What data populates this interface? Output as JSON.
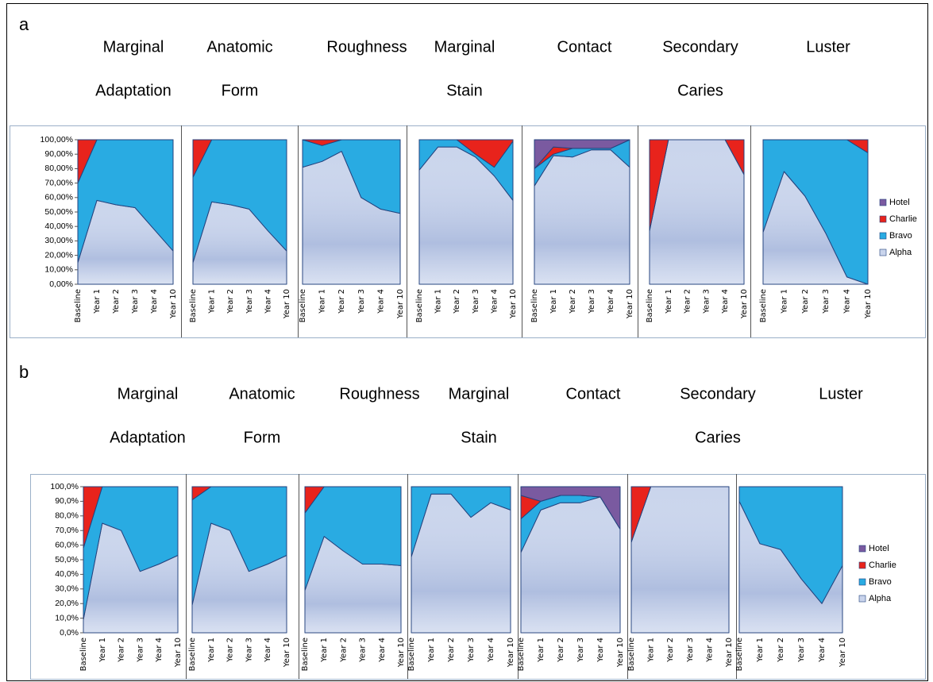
{
  "panel_labels": [
    "a",
    "b"
  ],
  "chart_data": [
    {
      "type": "area",
      "title": [
        "Marginal",
        "Adaptation"
      ],
      "categories": [
        "Baseline",
        "Year 1",
        "Year 2",
        "Year 3",
        "Year 4",
        "Year 10"
      ],
      "ylim": [
        0,
        100
      ],
      "yticks": [
        {
          "value": 0,
          "label": "0,00%"
        },
        {
          "value": 10,
          "label": "10,00%"
        },
        {
          "value": 20,
          "label": "20,00%"
        },
        {
          "value": 30,
          "label": "30,00%"
        },
        {
          "value": 40,
          "label": "40,00%"
        },
        {
          "value": 50,
          "label": "50,00%"
        },
        {
          "value": 60,
          "label": "60,00%"
        },
        {
          "value": 70,
          "label": "70,00%"
        },
        {
          "value": 80,
          "label": "80,00%"
        },
        {
          "value": 90,
          "label": "90,00%"
        },
        {
          "value": 100,
          "label": "100,00%"
        }
      ],
      "series": [
        {
          "name": "Alpha",
          "color": "#c9d4ec",
          "values": [
            15,
            58,
            55,
            53,
            38,
            23
          ]
        },
        {
          "name": "Bravo",
          "color": "#29abe2",
          "values": [
            55,
            42,
            45,
            47,
            62,
            77
          ]
        },
        {
          "name": "Charlie",
          "color": "#e8231c",
          "values": [
            30,
            0,
            0,
            0,
            0,
            0
          ]
        },
        {
          "name": "Hotel",
          "color": "#7a5aa0",
          "values": [
            0,
            0,
            0,
            0,
            0,
            0
          ]
        }
      ]
    },
    {
      "type": "area",
      "title": [
        "Anatomic",
        "Form"
      ],
      "categories": [
        "Baseline",
        "Year 1",
        "Year 2",
        "Year 3",
        "Year 4",
        "Year 10"
      ],
      "ylim": [
        0,
        100
      ],
      "series": [
        {
          "name": "Alpha",
          "color": "#c9d4ec",
          "values": [
            15,
            57,
            55,
            52,
            37,
            23
          ]
        },
        {
          "name": "Bravo",
          "color": "#29abe2",
          "values": [
            59,
            43,
            45,
            48,
            63,
            77
          ]
        },
        {
          "name": "Charlie",
          "color": "#e8231c",
          "values": [
            26,
            0,
            0,
            0,
            0,
            0
          ]
        },
        {
          "name": "Hotel",
          "color": "#7a5aa0",
          "values": [
            0,
            0,
            0,
            0,
            0,
            0
          ]
        }
      ]
    },
    {
      "type": "area",
      "title": [
        "Roughness"
      ],
      "categories": [
        "Baseline",
        "Year 1",
        "Year 2",
        "Year 3",
        "Year 4",
        "Year 10"
      ],
      "ylim": [
        0,
        100
      ],
      "series": [
        {
          "name": "Alpha",
          "color": "#c9d4ec",
          "values": [
            81,
            85,
            92,
            60,
            52,
            49
          ]
        },
        {
          "name": "Bravo",
          "color": "#29abe2",
          "values": [
            19,
            11,
            8,
            40,
            48,
            51
          ]
        },
        {
          "name": "Charlie",
          "color": "#e8231c",
          "values": [
            0,
            4,
            0,
            0,
            0,
            0
          ]
        },
        {
          "name": "Hotel",
          "color": "#7a5aa0",
          "values": [
            0,
            0,
            0,
            0,
            0,
            0
          ]
        }
      ]
    },
    {
      "type": "area",
      "title": [
        "Marginal",
        "Stain"
      ],
      "categories": [
        "Baseline",
        "Year 1",
        "Year 2",
        "Year 3",
        "Year 4",
        "Year 10"
      ],
      "ylim": [
        0,
        100
      ],
      "series": [
        {
          "name": "Alpha",
          "color": "#c9d4ec",
          "values": [
            79,
            95,
            95,
            88,
            75,
            58
          ]
        },
        {
          "name": "Bravo",
          "color": "#29abe2",
          "values": [
            21,
            5,
            5,
            2,
            6,
            41
          ]
        },
        {
          "name": "Charlie",
          "color": "#e8231c",
          "values": [
            0,
            0,
            0,
            10,
            19,
            1
          ]
        },
        {
          "name": "Hotel",
          "color": "#7a5aa0",
          "values": [
            0,
            0,
            0,
            0,
            0,
            0
          ]
        }
      ]
    },
    {
      "type": "area",
      "title": [
        "Contact"
      ],
      "categories": [
        "Baseline",
        "Year 1",
        "Year 2",
        "Year 3",
        "Year 4",
        "Year 10"
      ],
      "ylim": [
        0,
        100
      ],
      "series": [
        {
          "name": "Alpha",
          "color": "#c9d4ec",
          "values": [
            68,
            89,
            88,
            93,
            93,
            81
          ]
        },
        {
          "name": "Bravo",
          "color": "#29abe2",
          "values": [
            12,
            1,
            6,
            1,
            1,
            19
          ]
        },
        {
          "name": "Charlie",
          "color": "#e8231c",
          "values": [
            0,
            5,
            0,
            0,
            0,
            0
          ]
        },
        {
          "name": "Hotel",
          "color": "#7a5aa0",
          "values": [
            20,
            5,
            6,
            6,
            6,
            0
          ]
        }
      ]
    },
    {
      "type": "area",
      "title": [
        "Secondary",
        "Caries"
      ],
      "categories": [
        "Baseline",
        "Year 1",
        "Year 2",
        "Year 3",
        "Year 4",
        "Year 10"
      ],
      "ylim": [
        0,
        100
      ],
      "series": [
        {
          "name": "Alpha",
          "color": "#c9d4ec",
          "values": [
            37,
            100,
            100,
            100,
            100,
            76
          ]
        },
        {
          "name": "Bravo",
          "color": "#29abe2",
          "values": [
            0,
            0,
            0,
            0,
            0,
            0
          ]
        },
        {
          "name": "Charlie",
          "color": "#e8231c",
          "values": [
            63,
            0,
            0,
            0,
            0,
            24
          ]
        },
        {
          "name": "Hotel",
          "color": "#7a5aa0",
          "values": [
            0,
            0,
            0,
            0,
            0,
            0
          ]
        }
      ]
    },
    {
      "type": "area",
      "title": [
        "Luster"
      ],
      "categories": [
        "Baseline",
        "Year 1",
        "Year 2",
        "Year 3",
        "Year 4",
        "Year 10"
      ],
      "ylim": [
        0,
        100
      ],
      "legend": "right",
      "series": [
        {
          "name": "Alpha",
          "color": "#c9d4ec",
          "values": [
            36,
            78,
            61,
            35,
            5,
            0
          ]
        },
        {
          "name": "Bravo",
          "color": "#29abe2",
          "values": [
            64,
            22,
            39,
            65,
            95,
            91
          ]
        },
        {
          "name": "Charlie",
          "color": "#e8231c",
          "values": [
            0,
            0,
            0,
            0,
            0,
            9
          ]
        },
        {
          "name": "Hotel",
          "color": "#7a5aa0",
          "values": [
            0,
            0,
            0,
            0,
            0,
            0
          ]
        }
      ]
    },
    {
      "type": "area",
      "title": [
        "Marginal",
        "Adaptation"
      ],
      "categories": [
        "Baseline",
        "Year 1",
        "Year 2",
        "Year 3",
        "Year 4",
        "Year 10"
      ],
      "ylim": [
        0,
        100
      ],
      "yticks": [
        {
          "value": 0,
          "label": "0,0%"
        },
        {
          "value": 10,
          "label": "10,0%"
        },
        {
          "value": 20,
          "label": "20,0%"
        },
        {
          "value": 30,
          "label": "30,0%"
        },
        {
          "value": 40,
          "label": "40,0%"
        },
        {
          "value": 50,
          "label": "50,0%"
        },
        {
          "value": 60,
          "label": "60,0%"
        },
        {
          "value": 70,
          "label": "70,0%"
        },
        {
          "value": 80,
          "label": "80,0%"
        },
        {
          "value": 90,
          "label": "90,0%"
        },
        {
          "value": 100,
          "label": "100,0%"
        }
      ],
      "series": [
        {
          "name": "Alpha",
          "color": "#c9d4ec",
          "values": [
            9,
            75,
            70,
            42,
            47,
            53
          ]
        },
        {
          "name": "Bravo",
          "color": "#29abe2",
          "values": [
            49,
            25,
            30,
            58,
            53,
            47
          ]
        },
        {
          "name": "Charlie",
          "color": "#e8231c",
          "values": [
            42,
            0,
            0,
            0,
            0,
            0
          ]
        },
        {
          "name": "Hotel",
          "color": "#7a5aa0",
          "values": [
            0,
            0,
            0,
            0,
            0,
            0
          ]
        }
      ]
    },
    {
      "type": "area",
      "title": [
        "Anatomic",
        "Form"
      ],
      "categories": [
        "Baseline",
        "Year 1",
        "Year 2",
        "Year 3",
        "Year 4",
        "Year 10"
      ],
      "ylim": [
        0,
        100
      ],
      "series": [
        {
          "name": "Alpha",
          "color": "#c9d4ec",
          "values": [
            19,
            75,
            70,
            42,
            47,
            53
          ]
        },
        {
          "name": "Bravo",
          "color": "#29abe2",
          "values": [
            72,
            25,
            30,
            58,
            53,
            47
          ]
        },
        {
          "name": "Charlie",
          "color": "#e8231c",
          "values": [
            9,
            0,
            0,
            0,
            0,
            0
          ]
        },
        {
          "name": "Hotel",
          "color": "#7a5aa0",
          "values": [
            0,
            0,
            0,
            0,
            0,
            0
          ]
        }
      ]
    },
    {
      "type": "area",
      "title": [
        "Roughness"
      ],
      "categories": [
        "Baseline",
        "Year 1",
        "Year 2",
        "Year 3",
        "Year 4",
        "Year 10"
      ],
      "ylim": [
        0,
        100
      ],
      "series": [
        {
          "name": "Alpha",
          "color": "#c9d4ec",
          "values": [
            29,
            66,
            56,
            47,
            47,
            46
          ]
        },
        {
          "name": "Bravo",
          "color": "#29abe2",
          "values": [
            53,
            34,
            44,
            53,
            53,
            54
          ]
        },
        {
          "name": "Charlie",
          "color": "#e8231c",
          "values": [
            18,
            0,
            0,
            0,
            0,
            0
          ]
        },
        {
          "name": "Hotel",
          "color": "#7a5aa0",
          "values": [
            0,
            0,
            0,
            0,
            0,
            0
          ]
        }
      ]
    },
    {
      "type": "area",
      "title": [
        "Marginal",
        "Stain"
      ],
      "categories": [
        "Baseline",
        "Year 1",
        "Year 2",
        "Year 3",
        "Year 4",
        "Year 10"
      ],
      "ylim": [
        0,
        100
      ],
      "series": [
        {
          "name": "Alpha",
          "color": "#c9d4ec",
          "values": [
            52,
            95,
            95,
            79,
            89,
            84
          ]
        },
        {
          "name": "Bravo",
          "color": "#29abe2",
          "values": [
            48,
            5,
            5,
            21,
            11,
            16
          ]
        },
        {
          "name": "Charlie",
          "color": "#e8231c",
          "values": [
            0,
            0,
            0,
            0,
            0,
            0
          ]
        },
        {
          "name": "Hotel",
          "color": "#7a5aa0",
          "values": [
            0,
            0,
            0,
            0,
            0,
            0
          ]
        }
      ]
    },
    {
      "type": "area",
      "title": [
        "Contact"
      ],
      "categories": [
        "Baseline",
        "Year 1",
        "Year 2",
        "Year 3",
        "Year 4",
        "Year 10"
      ],
      "ylim": [
        0,
        100
      ],
      "series": [
        {
          "name": "Alpha",
          "color": "#c9d4ec",
          "values": [
            55,
            84,
            89,
            89,
            93,
            71
          ]
        },
        {
          "name": "Bravo",
          "color": "#29abe2",
          "values": [
            23,
            6,
            5,
            5,
            0,
            0
          ]
        },
        {
          "name": "Charlie",
          "color": "#e8231c",
          "values": [
            16,
            0,
            0,
            0,
            0,
            0
          ]
        },
        {
          "name": "Hotel",
          "color": "#7a5aa0",
          "values": [
            6,
            10,
            6,
            6,
            7,
            29
          ]
        }
      ]
    },
    {
      "type": "area",
      "title": [
        "Secondary",
        "Caries"
      ],
      "categories": [
        "Baseline",
        "Year 1",
        "Year 2",
        "Year 3",
        "Year 4",
        "Year 10"
      ],
      "ylim": [
        0,
        100
      ],
      "series": [
        {
          "name": "Alpha",
          "color": "#c9d4ec",
          "values": [
            62,
            100,
            100,
            100,
            100,
            100
          ]
        },
        {
          "name": "Bravo",
          "color": "#29abe2",
          "values": [
            0,
            0,
            0,
            0,
            0,
            0
          ]
        },
        {
          "name": "Charlie",
          "color": "#e8231c",
          "values": [
            38,
            0,
            0,
            0,
            0,
            0
          ]
        },
        {
          "name": "Hotel",
          "color": "#7a5aa0",
          "values": [
            0,
            0,
            0,
            0,
            0,
            0
          ]
        }
      ]
    },
    {
      "type": "area",
      "title": [
        "Luster"
      ],
      "categories": [
        "Baseline",
        "Year 1",
        "Year 2",
        "Year 3",
        "Year 4",
        "Year 10"
      ],
      "ylim": [
        0,
        100
      ],
      "legend": "right",
      "series": [
        {
          "name": "Alpha",
          "color": "#c9d4ec",
          "values": [
            90,
            61,
            57,
            37,
            20,
            46
          ]
        },
        {
          "name": "Bravo",
          "color": "#29abe2",
          "values": [
            10,
            39,
            43,
            63,
            80,
            54
          ]
        },
        {
          "name": "Charlie",
          "color": "#e8231c",
          "values": [
            0,
            0,
            0,
            0,
            0,
            0
          ]
        },
        {
          "name": "Hotel",
          "color": "#7a5aa0",
          "values": [
            0,
            0,
            0,
            0,
            0,
            0
          ]
        }
      ]
    }
  ]
}
